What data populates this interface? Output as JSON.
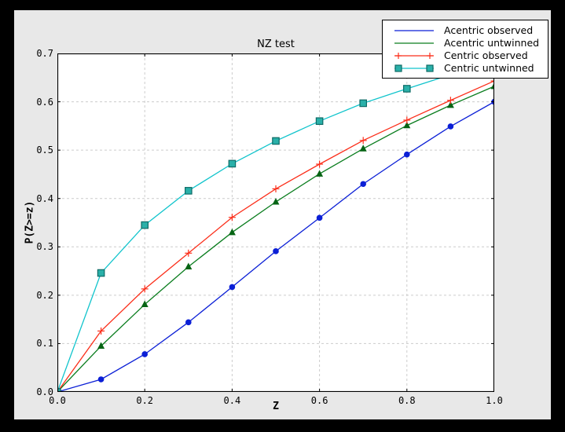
{
  "figure": {
    "frame_color": "#000000",
    "facecolor": "#e8e8e8",
    "plot_facecolor": "#ffffff",
    "grid_color": "#cccccc",
    "spine_color": "#000000"
  },
  "chart_data": {
    "type": "line",
    "title": "NZ test",
    "xlabel": "Z",
    "ylabel": "P(Z>=z)",
    "xlim": [
      0.0,
      1.0
    ],
    "ylim": [
      0.0,
      0.7
    ],
    "grid": true,
    "legend_position": "upper right",
    "x_ticks": [
      "0.0",
      "0.2",
      "0.4",
      "0.6",
      "0.8",
      "1.0"
    ],
    "y_ticks": [
      "0.0",
      "0.1",
      "0.2",
      "0.3",
      "0.4",
      "0.5",
      "0.6",
      "0.7"
    ],
    "x": [
      0.0,
      0.1,
      0.2,
      0.3,
      0.4,
      0.5,
      0.6,
      0.7,
      0.8,
      0.9,
      1.0
    ],
    "series": [
      {
        "name": "Acentric observed",
        "color": "#0b1fd6",
        "marker": "circle",
        "marker_fill": "#0b1fd6",
        "marker_edge": "#0b1fd6",
        "values": [
          0.0,
          0.026,
          0.078,
          0.144,
          0.217,
          0.291,
          0.36,
          0.43,
          0.491,
          0.549,
          0.6
        ]
      },
      {
        "name": "Acentric untwinned",
        "color": "#0a7d1e",
        "marker": "triangle",
        "marker_fill": "#066414",
        "marker_edge": "#066414",
        "values": [
          0.0,
          0.095,
          0.181,
          0.259,
          0.33,
          0.393,
          0.451,
          0.503,
          0.551,
          0.593,
          0.632
        ]
      },
      {
        "name": "Centric observed",
        "color": "#fb2e1a",
        "marker": "plus",
        "marker_fill": "#fb2e1a",
        "marker_edge": "#fb2e1a",
        "values": [
          0.0,
          0.126,
          0.213,
          0.287,
          0.361,
          0.42,
          0.471,
          0.52,
          0.562,
          0.603,
          0.643
        ]
      },
      {
        "name": "Centric untwinned",
        "color": "#11c4cc",
        "marker": "square",
        "marker_fill": "#2ab0a9",
        "marker_edge": "#0e6b66",
        "values": [
          0.0,
          0.246,
          0.345,
          0.416,
          0.472,
          0.519,
          0.56,
          0.597,
          0.627,
          0.656,
          0.682
        ]
      }
    ]
  }
}
